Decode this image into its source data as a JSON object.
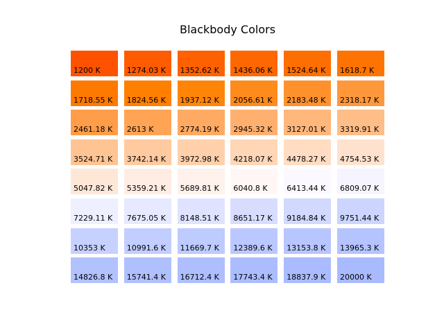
{
  "chart_data": {
    "type": "table",
    "title": "Blackbody Colors",
    "unit": "K",
    "columns": 6,
    "cells": [
      {
        "label": "1200 K",
        "value": 1200,
        "color": "#ff5200"
      },
      {
        "label": "1274.03 K",
        "value": 1274.03,
        "color": "#ff5b00"
      },
      {
        "label": "1352.62 K",
        "value": 1352.62,
        "color": "#ff6100"
      },
      {
        "label": "1436.06 K",
        "value": 1436.06,
        "color": "#ff6700"
      },
      {
        "label": "1524.64 K",
        "value": 1524.64,
        "color": "#ff6e00"
      },
      {
        "label": "1618.7 K",
        "value": 1618.7,
        "color": "#ff7400"
      },
      {
        "label": "1718.55 K",
        "value": 1718.55,
        "color": "#ff7900"
      },
      {
        "label": "1824.56 K",
        "value": 1824.56,
        "color": "#ff7f00"
      },
      {
        "label": "1937.12 K",
        "value": 1937.12,
        "color": "#ff8509"
      },
      {
        "label": "2056.61 K",
        "value": 2056.61,
        "color": "#ff8b1c"
      },
      {
        "label": "2183.48 K",
        "value": 2183.48,
        "color": "#ff912c"
      },
      {
        "label": "2318.17 K",
        "value": 2318.17,
        "color": "#ff973b"
      },
      {
        "label": "2461.18 K",
        "value": 2461.18,
        "color": "#ff9d48"
      },
      {
        "label": "2613 K",
        "value": 2613,
        "color": "#ffa455"
      },
      {
        "label": "2774.19 K",
        "value": 2774.19,
        "color": "#ffaa62"
      },
      {
        "label": "2945.32 K",
        "value": 2945.32,
        "color": "#ffb06f"
      },
      {
        "label": "3127.01 K",
        "value": 3127.01,
        "color": "#ffb77b"
      },
      {
        "label": "3319.91 K",
        "value": 3319.91,
        "color": "#ffbd87"
      },
      {
        "label": "3524.71 K",
        "value": 3524.71,
        "color": "#ffc493"
      },
      {
        "label": "3742.14 K",
        "value": 3742.14,
        "color": "#ffca9f"
      },
      {
        "label": "3972.98 K",
        "value": 3972.98,
        "color": "#ffd0aa"
      },
      {
        "label": "4218.07 K",
        "value": 4218.07,
        "color": "#ffd6b6"
      },
      {
        "label": "4478.27 K",
        "value": 4478.27,
        "color": "#ffdcc2"
      },
      {
        "label": "4754.53 K",
        "value": 4754.53,
        "color": "#ffe2cd"
      },
      {
        "label": "5047.82 K",
        "value": 5047.82,
        "color": "#ffe7d8"
      },
      {
        "label": "5359.21 K",
        "value": 5359.21,
        "color": "#ffece3"
      },
      {
        "label": "5689.81 K",
        "value": 5689.81,
        "color": "#fff1ec"
      },
      {
        "label": "6040.8 K",
        "value": 6040.8,
        "color": "#fff6f5"
      },
      {
        "label": "6413.44 K",
        "value": 6413.44,
        "color": "#fcf8ff"
      },
      {
        "label": "6809.07 K",
        "value": 6809.07,
        "color": "#f6f4ff"
      },
      {
        "label": "7229.11 K",
        "value": 7229.11,
        "color": "#eeefff"
      },
      {
        "label": "7675.05 K",
        "value": 7675.05,
        "color": "#e6e9ff"
      },
      {
        "label": "8148.51 K",
        "value": 8148.51,
        "color": "#dfe3ff"
      },
      {
        "label": "8651.17 K",
        "value": 8651.17,
        "color": "#d8ddff"
      },
      {
        "label": "9184.84 K",
        "value": 9184.84,
        "color": "#d1d9ff"
      },
      {
        "label": "9751.44 K",
        "value": 9751.44,
        "color": "#cbd5ff"
      },
      {
        "label": "10353 K",
        "value": 10353,
        "color": "#c6d1ff"
      },
      {
        "label": "10991.6 K",
        "value": 10991.6,
        "color": "#c2ceff"
      },
      {
        "label": "11669.7 K",
        "value": 11669.7,
        "color": "#becbff"
      },
      {
        "label": "12389.6 K",
        "value": 12389.6,
        "color": "#bbc8ff"
      },
      {
        "label": "13153.8 K",
        "value": 13153.8,
        "color": "#b8c6ff"
      },
      {
        "label": "13965.3 K",
        "value": 13965.3,
        "color": "#b5c4ff"
      },
      {
        "label": "14826.8 K",
        "value": 14826.8,
        "color": "#b2c2ff"
      },
      {
        "label": "15741.4 K",
        "value": 15741.4,
        "color": "#b0c0ff"
      },
      {
        "label": "16712.4 K",
        "value": 16712.4,
        "color": "#aebeff"
      },
      {
        "label": "17743.4 K",
        "value": 17743.4,
        "color": "#acbdff"
      },
      {
        "label": "18837.9 K",
        "value": 18837.9,
        "color": "#aabcff"
      },
      {
        "label": "20000 K",
        "value": 20000,
        "color": "#a9bbff"
      }
    ]
  }
}
